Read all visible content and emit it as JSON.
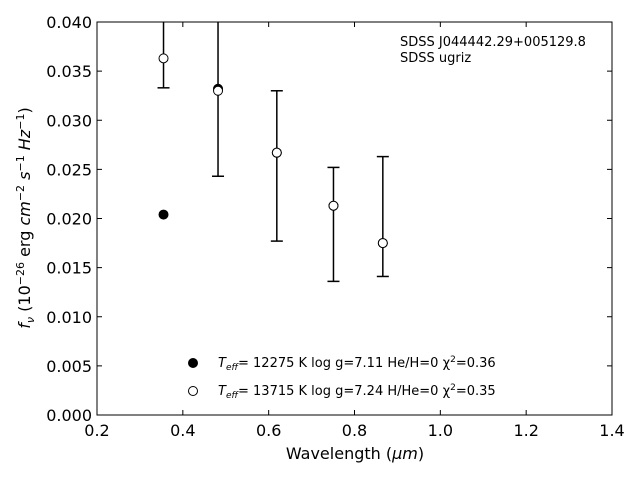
{
  "chart_data": {
    "type": "scatter",
    "title": "",
    "xlabel": "Wavelength",
    "xlabel_unit": "μm",
    "ylabel": "f",
    "ylabel_sub": "ν",
    "ylabel_unit": "10 erg cm s Hz",
    "xlim": [
      0.2,
      1.4
    ],
    "ylim": [
      0.0,
      0.04
    ],
    "x_ticks": [
      "0.2",
      "0.4",
      "0.6",
      "0.8",
      "1.0",
      "1.2",
      "1.4"
    ],
    "y_ticks": [
      "0.000",
      "0.005",
      "0.010",
      "0.015",
      "0.020",
      "0.025",
      "0.030",
      "0.035",
      "0.040"
    ],
    "grid": false,
    "legend_position": "bottom-center",
    "annotation": [
      "SDSS J044442.29+005129.8",
      "SDSS ugriz"
    ],
    "observed": {
      "x": [
        0.355,
        0.482,
        0.619,
        0.751,
        0.866
      ],
      "y": [
        0.0363,
        0.033,
        0.0267,
        0.0213,
        0.0175
      ],
      "yerr_low": [
        0.0333,
        0.0243,
        0.0177,
        0.0136,
        0.0141
      ],
      "yerr_high": [
        0.0425,
        0.042,
        0.033,
        0.0252,
        0.0263
      ]
    },
    "series": [
      {
        "name": "T_eff= 12275 K  log g=7.11  He/H=0  χ²=0.36",
        "marker": "filled-circle",
        "x": [
          0.355,
          0.482,
          0.619,
          0.751,
          0.866
        ],
        "y": [
          0.0204,
          0.0332,
          0.0267,
          0.0213,
          0.0175
        ]
      },
      {
        "name": "T_eff= 13715 K  log g=7.24  H/He=0  χ²=0.35",
        "marker": "open-circle",
        "x": [
          0.355,
          0.482,
          0.619,
          0.751,
          0.866
        ],
        "y": [
          0.0363,
          0.033,
          0.0267,
          0.0213,
          0.0175
        ]
      }
    ],
    "legend": [
      {
        "teff_label": "T",
        "teff_sub": "eff",
        "rest": "= 12275 K  log g=7.11  He/H=0  χ",
        "chi_sup": "2",
        "chi_val": "=0.36"
      },
      {
        "teff_label": "T",
        "teff_sub": "eff",
        "rest": "= 13715 K  log g=7.24  H/He=0  χ",
        "chi_sup": "2",
        "chi_val": "=0.35"
      }
    ]
  }
}
